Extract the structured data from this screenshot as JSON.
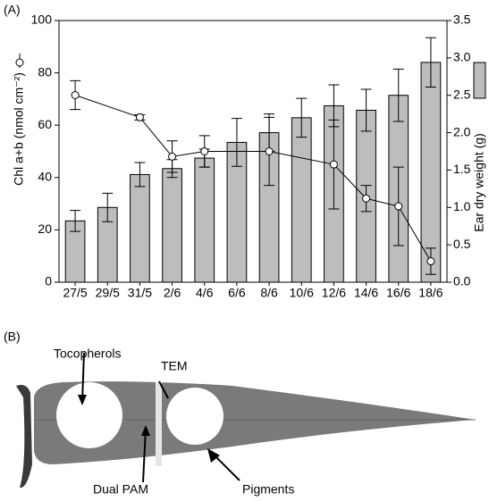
{
  "chart_data": {
    "type": "bar_line",
    "panel_label": "(A)",
    "categories": [
      "27/5",
      "29/5",
      "31/5",
      "2/6",
      "4/6",
      "6/6",
      "8/6",
      "10/6",
      "12/6",
      "14/6",
      "16/6",
      "18/6"
    ],
    "ylabel": "Chl a+b (nmol cm⁻²)",
    "y2label": "Ear dry weight (g)",
    "ylim": [
      0,
      100
    ],
    "yticks": [
      0,
      20,
      40,
      60,
      80,
      100
    ],
    "y2lim": [
      0,
      3.5
    ],
    "y2ticks": [
      {
        "value": 0,
        "label": "0.0"
      },
      0.5,
      {
        "value": 1,
        "label": "1.0"
      },
      1.5,
      {
        "value": 2,
        "label": "2.0"
      },
      2.5,
      {
        "value": 3,
        "label": "3.0"
      },
      3.5
    ],
    "series": [
      {
        "type": "line",
        "color": "#000000",
        "values": [
          71.5,
          null,
          63,
          48,
          50,
          null,
          50,
          null,
          45,
          32,
          29,
          8
        ],
        "errors": [
          5.5,
          null,
          1,
          6,
          6,
          null,
          13,
          null,
          17,
          5,
          15,
          5
        ]
      },
      {
        "type": "bar",
        "axis": "y2",
        "color": "#bdbdbd",
        "values": [
          0.82,
          1.0,
          1.44,
          1.52,
          1.66,
          1.87,
          2.0,
          2.2,
          2.36,
          2.3,
          2.5,
          2.94
        ],
        "errors": [
          0.14,
          0.19,
          0.16,
          0.12,
          0.12,
          0.32,
          0.25,
          0.26,
          0.28,
          0.28,
          0.35,
          0.33
        ]
      }
    ]
  },
  "photo": {
    "panel_label": "(B)",
    "labels": [
      "Tocopherols",
      "TEM",
      "Dual PAM",
      "Pigments"
    ]
  }
}
